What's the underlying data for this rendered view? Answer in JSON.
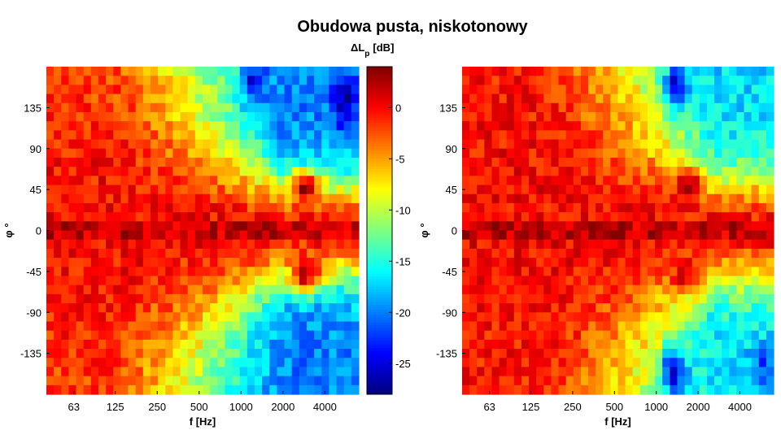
{
  "figure": {
    "title": "Obudowa pusta, niskotonowy"
  },
  "chart_data": [
    {
      "type": "heatmap",
      "panel": "left",
      "xlabel": "f [Hz]",
      "ylabel": "φ °",
      "x_scale": "log",
      "xlim": [
        40,
        7000
      ],
      "x_ticks": [
        "63",
        "125",
        "250",
        "500",
        "1000",
        "2000",
        "4000"
      ],
      "ylim": [
        -180,
        180
      ],
      "y_ticks": [
        "135",
        "90",
        "45",
        "0",
        "-45",
        "-90",
        "-135"
      ],
      "colorbar": {
        "label": "ΔL",
        "label_sub": "p",
        "label_unit": "[dB]",
        "range": [
          -28,
          4
        ],
        "ticks": [
          "0",
          "-5",
          "-10",
          "-15",
          "-20",
          "-25"
        ],
        "colormap": "jet"
      },
      "features": {
        "front_lobe_width_deg": 40,
        "wide_lobe_width_deg": 115,
        "narrowing_start_hz": 120,
        "narrowing_end_hz": 2000,
        "rear_level_low_f_db": -3,
        "rear_level_high_f_db": -20,
        "hot_spots": [
          {
            "f_hz": 2900,
            "phi_deg": 48,
            "level_db": 3
          },
          {
            "f_hz": 2900,
            "phi_deg": -48,
            "level_db": 3
          }
        ],
        "cold_spots": [
          {
            "f_hz": 1250,
            "phi_deg": 165,
            "level_db": -25
          },
          {
            "f_hz": 5500,
            "phi_deg": 140,
            "level_db": -27
          }
        ]
      }
    },
    {
      "type": "heatmap",
      "panel": "right",
      "xlabel": "f [Hz]",
      "ylabel": "φ °",
      "x_scale": "log",
      "xlim": [
        40,
        7000
      ],
      "x_ticks": [
        "63",
        "125",
        "250",
        "500",
        "1000",
        "2000",
        "4000"
      ],
      "ylim": [
        -180,
        180
      ],
      "y_ticks": [
        "135",
        "90",
        "45",
        "0",
        "-45",
        "-90",
        "-135"
      ],
      "features": {
        "front_lobe_width_deg": 45,
        "wide_lobe_width_deg": 125,
        "narrowing_start_hz": 150,
        "narrowing_end_hz": 2500,
        "rear_level_low_f_db": -1,
        "rear_level_high_f_db": -17,
        "hot_spots": [
          {
            "f_hz": 1700,
            "phi_deg": 50,
            "level_db": 2
          },
          {
            "f_hz": 1700,
            "phi_deg": -50,
            "level_db": 2
          }
        ],
        "cold_spots": [
          {
            "f_hz": 1350,
            "phi_deg": -155,
            "level_db": -26
          },
          {
            "f_hz": 1400,
            "phi_deg": 160,
            "level_db": -25
          },
          {
            "f_hz": 5800,
            "phi_deg": -150,
            "level_db": -22
          }
        ]
      }
    }
  ]
}
